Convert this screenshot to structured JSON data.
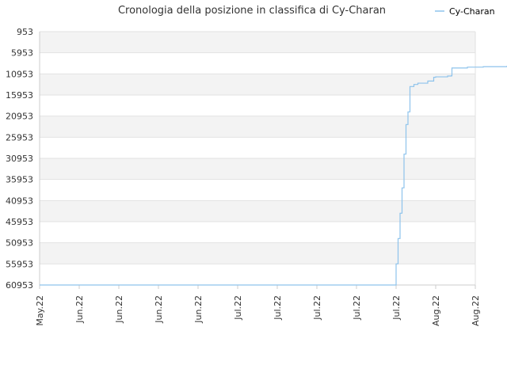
{
  "chart_data": {
    "type": "line",
    "title": "Cronologia della posizione in classifica di Cy-Charan",
    "xlabel": "",
    "ylabel": "",
    "y_inverted": true,
    "ylim": [
      953,
      60953
    ],
    "y_ticks": [
      "953",
      "5953",
      "10953",
      "15953",
      "20953",
      "25953",
      "30953",
      "35953",
      "40953",
      "45953",
      "50953",
      "55953",
      "60953"
    ],
    "x_ticks": [
      "May.22",
      "Jun.22",
      "Jun.22",
      "Jun.22",
      "Jun.22",
      "Jul.22",
      "Jul.22",
      "Jul.22",
      "Jul.22",
      "Jul.22",
      "Aug.22",
      "Aug.22"
    ],
    "grid": true,
    "legend_position": "top-right",
    "colors": {
      "series": "#8ec3ec",
      "band": "#f3f3f3",
      "grid": "#e2e2e2",
      "axis": "#cccccc"
    },
    "series": [
      {
        "name": "Cy-Charan",
        "x": [
          0,
          8.9,
          9.0,
          9.05,
          9.1,
          9.15,
          9.2,
          9.25,
          9.3,
          9.35,
          9.45,
          9.55,
          9.8,
          9.95,
          10.0,
          10.1,
          10.3,
          10.4,
          10.41,
          10.6,
          10.8,
          11.1,
          11.2,
          11.5,
          11.8,
          11.85,
          12.0
        ],
        "values": [
          60953,
          60953,
          55953,
          49953,
          43953,
          37953,
          29953,
          22953,
          19953,
          13953,
          13453,
          13153,
          12653,
          11753,
          11653,
          11653,
          11453,
          11353,
          9553,
          9553,
          9353,
          9353,
          9253,
          9253,
          9153,
          8653,
          8653
        ]
      }
    ]
  }
}
